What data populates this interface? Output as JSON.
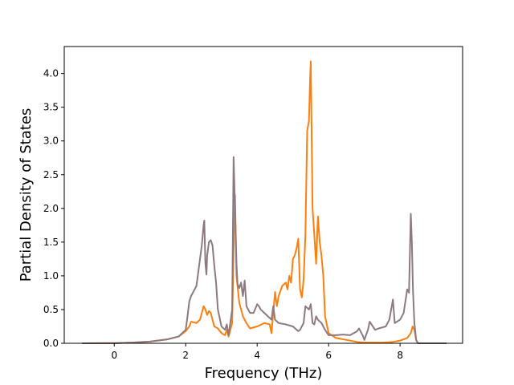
{
  "chart_data": {
    "type": "line",
    "title": "",
    "xlabel": "Frequency (THz)",
    "ylabel": "Partial Density of States",
    "xlim": [
      -1.4,
      9.75
    ],
    "ylim": [
      0.0,
      4.4
    ],
    "xticks": [
      0,
      2,
      4,
      6,
      8
    ],
    "xtick_labels": [
      "0",
      "2",
      "4",
      "6",
      "8"
    ],
    "yticks": [
      0.0,
      0.5,
      1.0,
      1.5,
      2.0,
      2.5,
      3.0,
      3.5,
      4.0
    ],
    "ytick_labels": [
      "0.0",
      "0.5",
      "1.0",
      "1.5",
      "2.0",
      "2.5",
      "3.0",
      "3.5",
      "4.0"
    ],
    "grid": false,
    "legend": "none",
    "series": [
      {
        "color": "#ff7f0e",
        "points": [
          [
            -0.9,
            0.0
          ],
          [
            0.0,
            0.002
          ],
          [
            0.5,
            0.01
          ],
          [
            1.0,
            0.025
          ],
          [
            1.5,
            0.06
          ],
          [
            1.8,
            0.1
          ],
          [
            2.0,
            0.18
          ],
          [
            2.1,
            0.25
          ],
          [
            2.15,
            0.32
          ],
          [
            2.3,
            0.3
          ],
          [
            2.4,
            0.35
          ],
          [
            2.45,
            0.45
          ],
          [
            2.5,
            0.55
          ],
          [
            2.55,
            0.5
          ],
          [
            2.6,
            0.42
          ],
          [
            2.65,
            0.48
          ],
          [
            2.7,
            0.45
          ],
          [
            2.75,
            0.35
          ],
          [
            2.8,
            0.25
          ],
          [
            2.9,
            0.22
          ],
          [
            3.0,
            0.15
          ],
          [
            3.1,
            0.12
          ],
          [
            3.15,
            0.2
          ],
          [
            3.2,
            0.1
          ],
          [
            3.3,
            0.3
          ],
          [
            3.35,
            1.6
          ],
          [
            3.38,
            2.2
          ],
          [
            3.42,
            1.0
          ],
          [
            3.5,
            0.6
          ],
          [
            3.6,
            0.4
          ],
          [
            3.7,
            0.3
          ],
          [
            3.8,
            0.22
          ],
          [
            4.0,
            0.25
          ],
          [
            4.2,
            0.3
          ],
          [
            4.35,
            0.28
          ],
          [
            4.4,
            0.15
          ],
          [
            4.45,
            0.45
          ],
          [
            4.5,
            0.76
          ],
          [
            4.55,
            0.55
          ],
          [
            4.6,
            0.7
          ],
          [
            4.7,
            0.85
          ],
          [
            4.8,
            0.9
          ],
          [
            4.85,
            0.8
          ],
          [
            4.9,
            1.0
          ],
          [
            4.95,
            0.9
          ],
          [
            5.0,
            1.25
          ],
          [
            5.05,
            1.3
          ],
          [
            5.1,
            1.4
          ],
          [
            5.15,
            1.55
          ],
          [
            5.2,
            0.8
          ],
          [
            5.25,
            0.68
          ],
          [
            5.3,
            0.95
          ],
          [
            5.35,
            1.6
          ],
          [
            5.4,
            3.15
          ],
          [
            5.45,
            3.3
          ],
          [
            5.48,
            3.9
          ],
          [
            5.5,
            4.18
          ],
          [
            5.55,
            2.0
          ],
          [
            5.6,
            1.6
          ],
          [
            5.65,
            1.18
          ],
          [
            5.7,
            1.88
          ],
          [
            5.75,
            1.5
          ],
          [
            5.8,
            1.3
          ],
          [
            5.85,
            1.0
          ],
          [
            5.9,
            0.4
          ],
          [
            6.0,
            0.15
          ],
          [
            6.2,
            0.08
          ],
          [
            6.5,
            0.05
          ],
          [
            6.8,
            0.02
          ],
          [
            7.0,
            0.01
          ],
          [
            7.5,
            0.01
          ],
          [
            7.8,
            0.02
          ],
          [
            8.0,
            0.04
          ],
          [
            8.2,
            0.08
          ],
          [
            8.3,
            0.15
          ],
          [
            8.35,
            0.25
          ],
          [
            8.4,
            0.2
          ],
          [
            8.45,
            0.05
          ],
          [
            8.5,
            0.0
          ],
          [
            9.3,
            0.0
          ]
        ]
      },
      {
        "color": "#8c7a80",
        "points": [
          [
            -0.9,
            0.0
          ],
          [
            0.0,
            0.002
          ],
          [
            0.5,
            0.01
          ],
          [
            1.0,
            0.025
          ],
          [
            1.5,
            0.06
          ],
          [
            1.8,
            0.1
          ],
          [
            2.0,
            0.2
          ],
          [
            2.05,
            0.4
          ],
          [
            2.1,
            0.62
          ],
          [
            2.15,
            0.7
          ],
          [
            2.2,
            0.75
          ],
          [
            2.25,
            0.8
          ],
          [
            2.3,
            0.85
          ],
          [
            2.35,
            1.05
          ],
          [
            2.4,
            1.25
          ],
          [
            2.45,
            1.45
          ],
          [
            2.5,
            1.75
          ],
          [
            2.52,
            1.82
          ],
          [
            2.55,
            1.2
          ],
          [
            2.58,
            1.02
          ],
          [
            2.6,
            1.3
          ],
          [
            2.65,
            1.5
          ],
          [
            2.7,
            1.53
          ],
          [
            2.75,
            1.45
          ],
          [
            2.8,
            1.15
          ],
          [
            2.85,
            0.9
          ],
          [
            2.9,
            0.5
          ],
          [
            3.0,
            0.25
          ],
          [
            3.1,
            0.2
          ],
          [
            3.15,
            0.28
          ],
          [
            3.2,
            0.12
          ],
          [
            3.3,
            0.5
          ],
          [
            3.34,
            2.76
          ],
          [
            3.38,
            2.0
          ],
          [
            3.42,
            1.2
          ],
          [
            3.45,
            0.88
          ],
          [
            3.5,
            0.82
          ],
          [
            3.55,
            0.9
          ],
          [
            3.6,
            0.7
          ],
          [
            3.65,
            0.93
          ],
          [
            3.7,
            0.55
          ],
          [
            3.8,
            0.45
          ],
          [
            3.9,
            0.45
          ],
          [
            4.0,
            0.58
          ],
          [
            4.05,
            0.55
          ],
          [
            4.1,
            0.5
          ],
          [
            4.2,
            0.45
          ],
          [
            4.3,
            0.4
          ],
          [
            4.4,
            0.35
          ],
          [
            4.45,
            0.55
          ],
          [
            4.5,
            0.35
          ],
          [
            4.6,
            0.3
          ],
          [
            4.8,
            0.28
          ],
          [
            5.0,
            0.25
          ],
          [
            5.15,
            0.18
          ],
          [
            5.2,
            0.2
          ],
          [
            5.3,
            0.3
          ],
          [
            5.35,
            0.55
          ],
          [
            5.45,
            0.5
          ],
          [
            5.5,
            0.58
          ],
          [
            5.55,
            0.3
          ],
          [
            5.6,
            0.28
          ],
          [
            5.65,
            0.4
          ],
          [
            5.7,
            0.35
          ],
          [
            5.8,
            0.3
          ],
          [
            5.9,
            0.2
          ],
          [
            6.0,
            0.12
          ],
          [
            6.2,
            0.12
          ],
          [
            6.4,
            0.13
          ],
          [
            6.6,
            0.12
          ],
          [
            6.8,
            0.18
          ],
          [
            6.85,
            0.22
          ],
          [
            6.95,
            0.12
          ],
          [
            7.0,
            0.05
          ],
          [
            7.1,
            0.2
          ],
          [
            7.15,
            0.32
          ],
          [
            7.2,
            0.28
          ],
          [
            7.3,
            0.2
          ],
          [
            7.4,
            0.22
          ],
          [
            7.6,
            0.25
          ],
          [
            7.7,
            0.35
          ],
          [
            7.8,
            0.65
          ],
          [
            7.85,
            0.3
          ],
          [
            8.0,
            0.35
          ],
          [
            8.1,
            0.45
          ],
          [
            8.2,
            0.8
          ],
          [
            8.25,
            0.75
          ],
          [
            8.3,
            1.92
          ],
          [
            8.33,
            1.5
          ],
          [
            8.36,
            0.8
          ],
          [
            8.4,
            0.3
          ],
          [
            8.45,
            0.05
          ],
          [
            8.5,
            0.0
          ],
          [
            9.3,
            0.0
          ]
        ]
      }
    ]
  }
}
